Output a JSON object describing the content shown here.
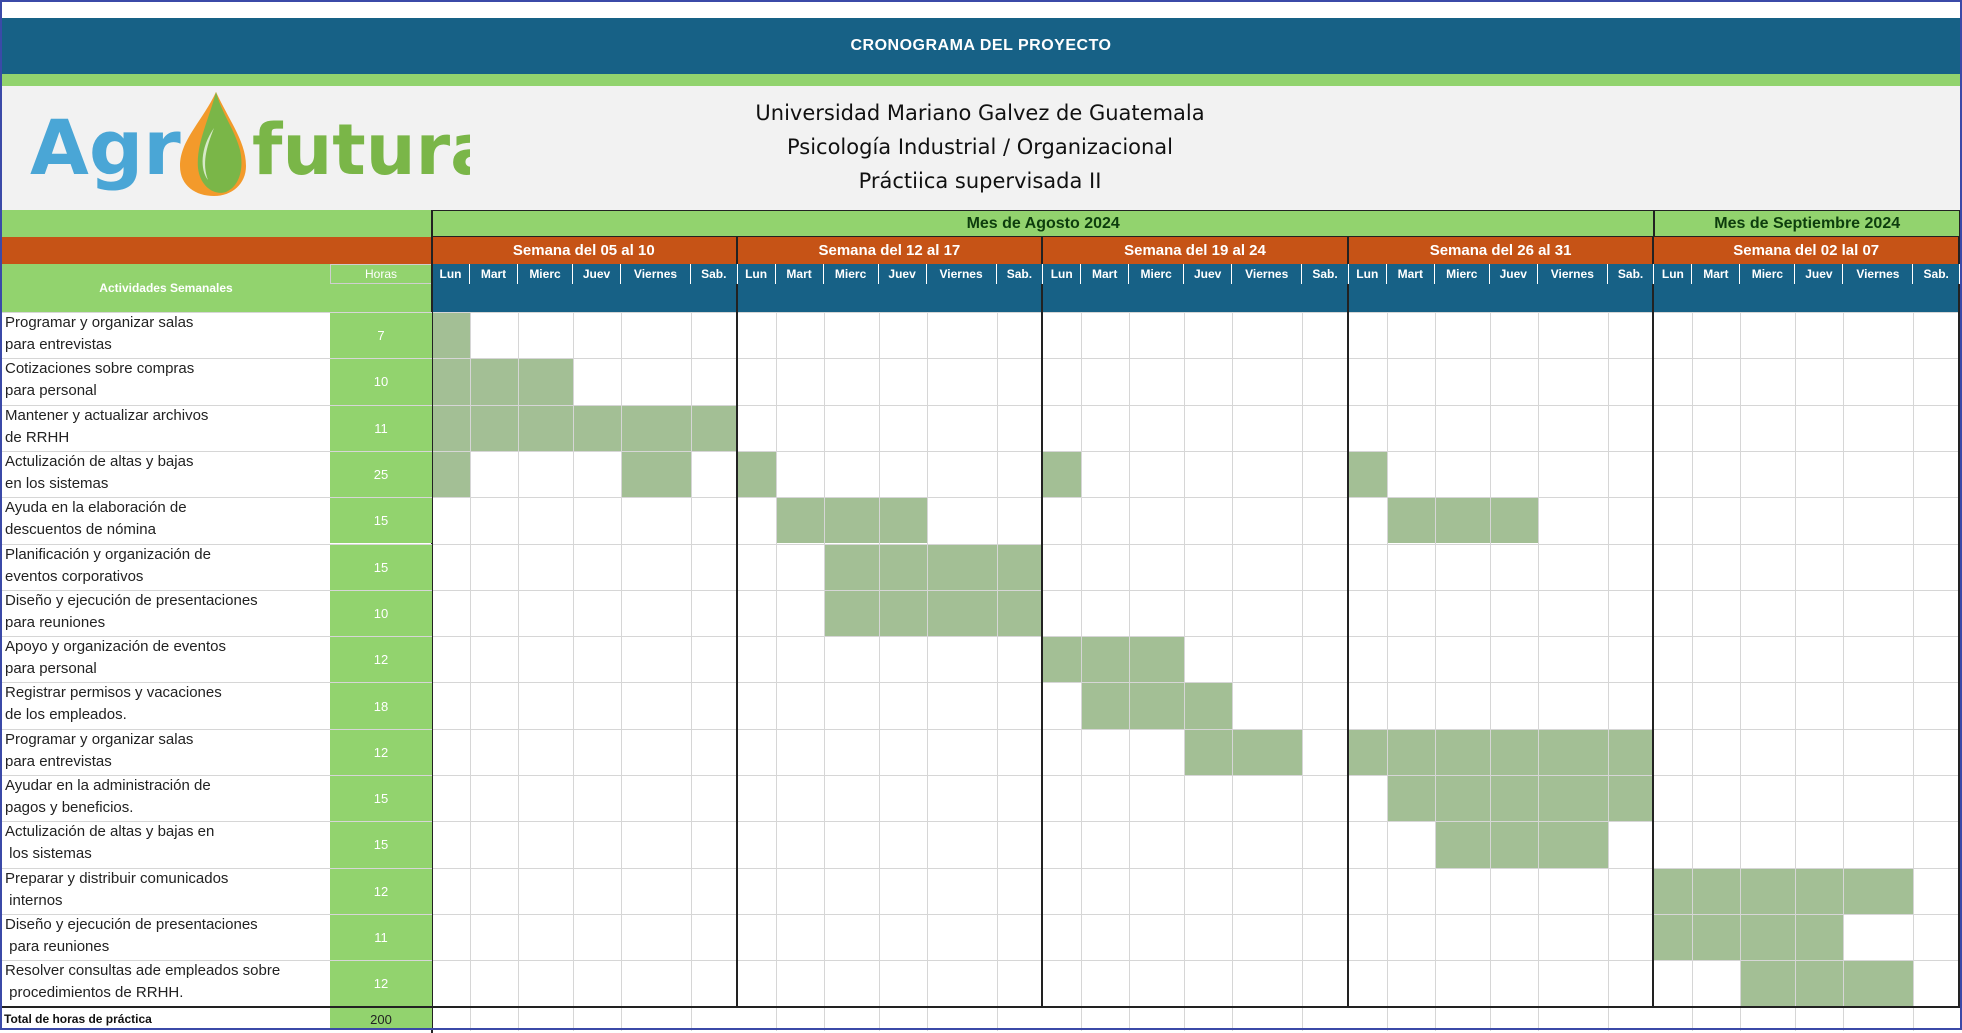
{
  "banner_title": "CRONOGRAMA DEL PROYECTO",
  "logo": {
    "text_left": "Agr",
    "text_right": "futura"
  },
  "header": {
    "lines": [
      "Universidad Mariano Galvez de Guatemala",
      "Psicología Industrial  / Organizacional",
      "Práctiica supervisada II"
    ]
  },
  "months": [
    {
      "label": "Mes de Agosto 2024",
      "weeks": 4
    },
    {
      "label": "Mes de Septiembre 2024",
      "weeks": 1
    }
  ],
  "weeks": [
    "Semana del 05 al 10",
    "Semana del 12 al 17",
    "Semana del 19 al 24",
    "Semana del 26 al 31",
    "Semana del 02 lal 07"
  ],
  "days": [
    "Lun",
    "Mart",
    "Mierc",
    "Juev",
    "Viernes",
    "Sab."
  ],
  "column_headers": {
    "activities": "Actividades Semanales",
    "hours": "Horas"
  },
  "activities": [
    {
      "line1": "Programar y organizar salas",
      "line2": "para entrevistas",
      "hours": "7",
      "filled": [
        0
      ]
    },
    {
      "line1": "Cotizaciones sobre compras",
      "line2": "para personal",
      "hours": "10",
      "filled": [
        0,
        1,
        2
      ]
    },
    {
      "line1": "Mantener y actualizar archivos",
      "line2": "de RRHH",
      "hours": "11",
      "filled": [
        0,
        1,
        2,
        3,
        4,
        5
      ]
    },
    {
      "line1": "Actulización de altas y bajas",
      "line2": "en los sistemas",
      "hours": "25",
      "filled": [
        0,
        4,
        6,
        12,
        18
      ]
    },
    {
      "line1": "Ayuda en la elaboración de",
      "line2": "descuentos de nómina",
      "hours": "15",
      "filled": [
        7,
        8,
        9,
        19,
        20,
        21
      ]
    },
    {
      "line1": "Planificación y organización de",
      "line2": "eventos corporativos",
      "hours": "15",
      "filled": [
        8,
        9,
        10,
        11
      ]
    },
    {
      "line1": "Diseño y ejecución de presentaciones",
      "line2": "para reuniones",
      "hours": "10",
      "filled": [
        8,
        9,
        10,
        11
      ]
    },
    {
      "line1": "Apoyo y organización de eventos",
      "line2": "para personal",
      "hours": "12",
      "filled": [
        12,
        13,
        14
      ]
    },
    {
      "line1": "Registrar permisos y vacaciones",
      "line2": "de los empleados.",
      "hours": "18",
      "filled": [
        13,
        14,
        15
      ]
    },
    {
      "line1": "Programar y organizar salas",
      "line2": "para entrevistas",
      "hours": "12",
      "filled": [
        15,
        16,
        18,
        19,
        20,
        21,
        22,
        23
      ]
    },
    {
      "line1": "Ayudar en la administración de",
      "line2": "pagos y beneficios.",
      "hours": "15",
      "filled": [
        19,
        20,
        21,
        22,
        23
      ]
    },
    {
      "line1": "Actulización de altas y bajas en",
      "line2": " los sistemas",
      "hours": "15",
      "filled": [
        20,
        21,
        22
      ]
    },
    {
      "line1": "Preparar y distribuir comunicados",
      "line2": " internos",
      "hours": "12",
      "filled": [
        24,
        25,
        26,
        27,
        28
      ]
    },
    {
      "line1": "Diseño y ejecución de presentaciones",
      "line2": " para reuniones",
      "hours": "11",
      "filled": [
        24,
        25,
        26,
        27
      ]
    },
    {
      "line1": "Resolver consultas ade empleados sobre",
      "line2": " procedimientos de RRHH.",
      "hours": "12",
      "filled": [
        26,
        27,
        28
      ]
    }
  ],
  "total": {
    "label": "Total de horas de práctica",
    "hours": "200"
  },
  "colors": {
    "banner": "#176186",
    "green_header": "#92d36e",
    "week_orange": "#c65316",
    "filled_cell": "#a3bf95",
    "logo_blue": "#4aa6d6",
    "logo_green": "#7ab648",
    "logo_orange": "#f39a2b"
  }
}
